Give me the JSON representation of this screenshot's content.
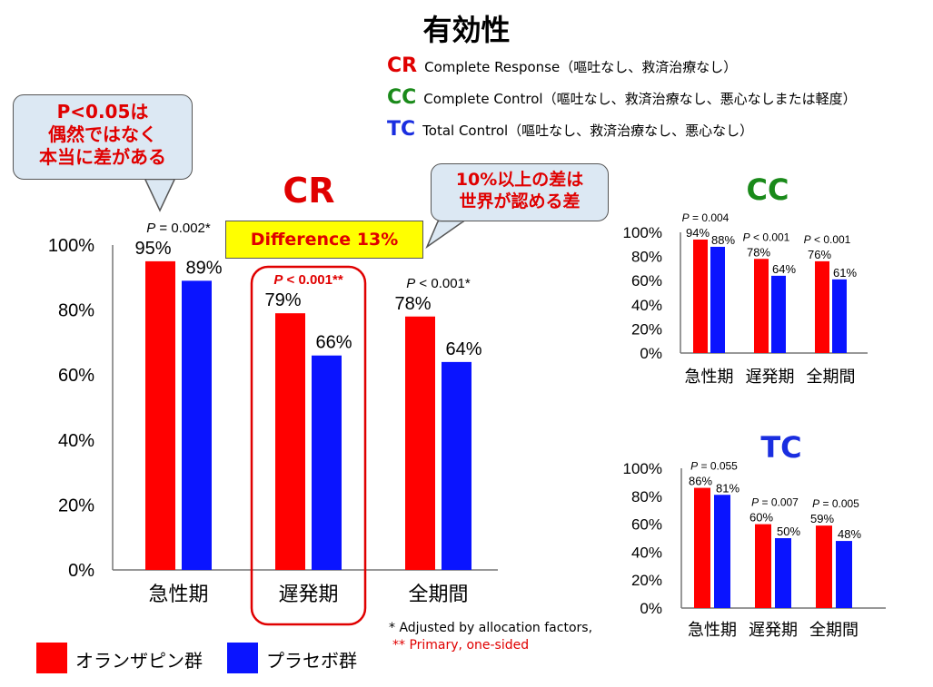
{
  "title": "有効性",
  "legend": [
    {
      "abbr": "CR",
      "color": "#e00000",
      "desc": "Complete Response（嘔吐なし、救済治療なし）"
    },
    {
      "abbr": "CC",
      "color": "#1a8a1a",
      "desc": "Complete Control（嘔吐なし、救済治療なし、悪心なしまたは軽度）"
    },
    {
      "abbr": "TC",
      "color": "#1a2ee0",
      "desc": "Total Control（嘔吐なし、救済治療なし、悪心なし）"
    }
  ],
  "callouts": {
    "left": [
      "P<0.05は",
      "偶然ではなく",
      "本当に差がある"
    ],
    "right": [
      "10%以上の差は",
      "世界が認める差"
    ]
  },
  "difference_label": "Difference 13%",
  "footnotes": [
    "* Adjusted by allocation factors,",
    "** Primary, one-sided"
  ],
  "series_legend": [
    {
      "name": "オランザピン群",
      "color": "#ff0000"
    },
    {
      "name": "プラセボ群",
      "color": "#0a14ff"
    }
  ],
  "chart_data": [
    {
      "type": "bar",
      "title": "CR",
      "categories": [
        "急性期",
        "遅発期",
        "全期間"
      ],
      "series": [
        {
          "name": "オランザピン群",
          "values": [
            95,
            79,
            78
          ]
        },
        {
          "name": "プラセボ群",
          "values": [
            89,
            66,
            64
          ]
        }
      ],
      "value_labels": [
        [
          "95%",
          "89%"
        ],
        [
          "79%",
          "66%"
        ],
        [
          "78%",
          "64%"
        ]
      ],
      "p_values": [
        {
          "italic": "P",
          "text": " = 0.002*"
        },
        {
          "italic": "P",
          "text": " < 0.001**"
        },
        {
          "italic": "P",
          "text": " < 0.001*"
        }
      ],
      "yticks": [
        "0%",
        "20%",
        "40%",
        "60%",
        "80%",
        "100%"
      ],
      "ylim": [
        0,
        100
      ],
      "highlight_category": "遅発期"
    },
    {
      "type": "bar",
      "title": "CC",
      "categories": [
        "急性期",
        "遅発期",
        "全期間"
      ],
      "series": [
        {
          "name": "オランザピン群",
          "values": [
            94,
            78,
            76
          ]
        },
        {
          "name": "プラセボ群",
          "values": [
            88,
            64,
            61
          ]
        }
      ],
      "value_labels": [
        [
          "94%",
          "88%"
        ],
        [
          "78%",
          "64%"
        ],
        [
          "76%",
          "61%"
        ]
      ],
      "p_values": [
        {
          "italic": "P",
          "text": " = 0.004"
        },
        {
          "italic": "P",
          "text": " < 0.001"
        },
        {
          "italic": "P",
          "text": " < 0.001"
        }
      ],
      "yticks": [
        "0%",
        "20%",
        "40%",
        "60%",
        "80%",
        "100%"
      ],
      "ylim": [
        0,
        100
      ]
    },
    {
      "type": "bar",
      "title": "TC",
      "categories": [
        "急性期",
        "遅発期",
        "全期間"
      ],
      "series": [
        {
          "name": "オランザピン群",
          "values": [
            86,
            60,
            59
          ]
        },
        {
          "name": "プラセボ群",
          "values": [
            81,
            50,
            48
          ]
        }
      ],
      "value_labels": [
        [
          "86%",
          "81%"
        ],
        [
          "60%",
          "50%"
        ],
        [
          "59%",
          "48%"
        ]
      ],
      "p_values": [
        {
          "italic": "P",
          "text": " = 0.055"
        },
        {
          "italic": "P",
          "text": " = 0.007"
        },
        {
          "italic": "P",
          "text": " = 0.005"
        }
      ],
      "yticks": [
        "0%",
        "20%",
        "40%",
        "60%",
        "80%",
        "100%"
      ],
      "ylim": [
        0,
        100
      ]
    }
  ]
}
